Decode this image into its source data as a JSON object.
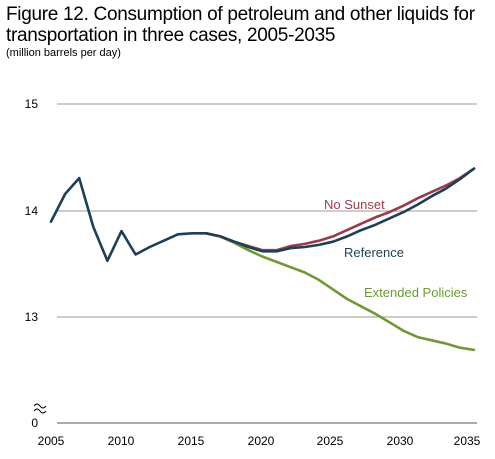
{
  "title": "Figure 12. Consumption of petroleum and other liquids for transportation in three cases, 2005-2035",
  "subtitle": "(million barrels per day)",
  "colors": {
    "reference": "#1f3f57",
    "no_sunset": "#9b3b4a",
    "extended_policies": "#6e9a35",
    "grid": "#9a9a9a",
    "axis": "#555555"
  },
  "chart_data": {
    "type": "line",
    "title": "Figure 12. Consumption of petroleum and other liquids for transportation in three cases, 2005-2035",
    "subtitle": "(million barrels per day)",
    "xlabel": "",
    "ylabel": "",
    "xlim": [
      2005,
      2035
    ],
    "ylim": [
      12,
      15
    ],
    "y_axis_break": true,
    "y_ticks": [
      0,
      13,
      14,
      15
    ],
    "y_tick_labels": [
      "0",
      "13",
      "14",
      "15"
    ],
    "x_ticks": [
      2005,
      2010,
      2015,
      2020,
      2025,
      2030,
      2035
    ],
    "x_tick_labels": [
      "2005",
      "2010",
      "2015",
      "2020",
      "2025",
      "2030",
      "2035"
    ],
    "grid": "horizontal",
    "series": [
      {
        "name": "Extended Policies",
        "color": "#6e9a35",
        "x": [
          2016,
          2017,
          2018,
          2019,
          2020,
          2021,
          2022,
          2023,
          2024,
          2025,
          2026,
          2027,
          2028,
          2029,
          2030,
          2031,
          2032,
          2033,
          2034,
          2035
        ],
        "values": [
          13.79,
          13.76,
          13.7,
          13.63,
          13.57,
          13.52,
          13.47,
          13.42,
          13.35,
          13.26,
          13.17,
          13.1,
          13.03,
          12.95,
          12.87,
          12.81,
          12.78,
          12.75,
          12.71,
          12.69
        ]
      },
      {
        "name": "No Sunset",
        "color": "#9b3b4a",
        "x": [
          2016,
          2017,
          2018,
          2019,
          2020,
          2021,
          2022,
          2023,
          2024,
          2025,
          2026,
          2027,
          2028,
          2029,
          2030,
          2031,
          2032,
          2033,
          2034,
          2035
        ],
        "values": [
          13.79,
          13.76,
          13.71,
          13.67,
          13.63,
          13.63,
          13.67,
          13.69,
          13.72,
          13.76,
          13.82,
          13.88,
          13.94,
          13.99,
          14.05,
          14.12,
          14.18,
          14.24,
          14.31,
          14.4
        ]
      },
      {
        "name": "Reference",
        "color": "#1f3f57",
        "x": [
          2005,
          2006,
          2007,
          2008,
          2009,
          2010,
          2011,
          2012,
          2013,
          2014,
          2015,
          2016,
          2017,
          2018,
          2019,
          2020,
          2021,
          2022,
          2023,
          2024,
          2025,
          2026,
          2027,
          2028,
          2029,
          2030,
          2031,
          2032,
          2033,
          2034,
          2035
        ],
        "values": [
          13.9,
          14.16,
          14.31,
          13.85,
          13.53,
          13.81,
          13.59,
          13.66,
          13.72,
          13.78,
          13.79,
          13.79,
          13.76,
          13.71,
          13.66,
          13.62,
          13.62,
          13.65,
          13.66,
          13.68,
          13.71,
          13.76,
          13.82,
          13.87,
          13.93,
          13.99,
          14.06,
          14.14,
          14.21,
          14.3,
          14.4
        ]
      }
    ]
  }
}
